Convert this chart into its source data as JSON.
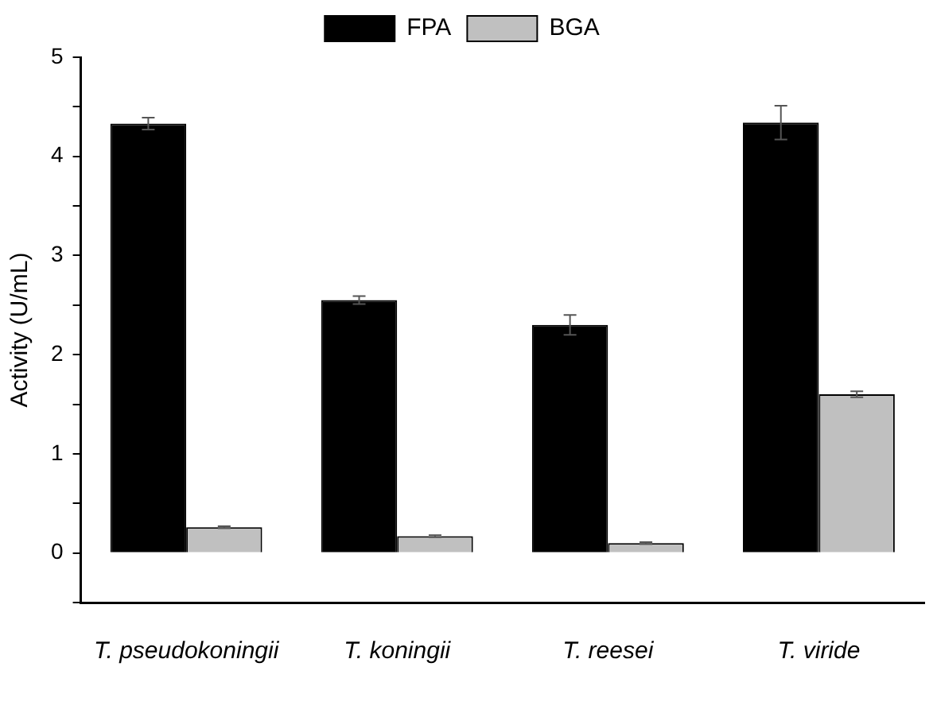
{
  "chart_data": {
    "type": "bar",
    "ylabel": "Activity (U/mL)",
    "categories": [
      "T. pseudokoningii",
      "T. koningii",
      "T. reesei",
      "T. viride"
    ],
    "series": [
      {
        "name": "FPA",
        "color": "#000000",
        "values": [
          4.33,
          2.55,
          2.3,
          4.34
        ],
        "errors": [
          0.06,
          0.04,
          0.1,
          0.17
        ]
      },
      {
        "name": "BGA",
        "color": "#c0c0c0",
        "values": [
          0.26,
          0.17,
          0.1,
          1.6
        ],
        "errors": [
          0.01,
          0.01,
          0.01,
          0.03
        ]
      }
    ],
    "ylim": [
      -0.5,
      5
    ],
    "yticks": [
      {
        "value": -0.5,
        "label": null
      },
      0,
      {
        "value": 0.5,
        "label": null
      },
      1,
      {
        "value": 1.5,
        "label": null
      },
      2,
      {
        "value": 2.5,
        "label": null
      },
      3,
      {
        "value": 3.5,
        "label": null
      },
      4,
      {
        "value": 4.5,
        "label": null
      },
      5
    ],
    "grid": false,
    "legend": "top"
  }
}
